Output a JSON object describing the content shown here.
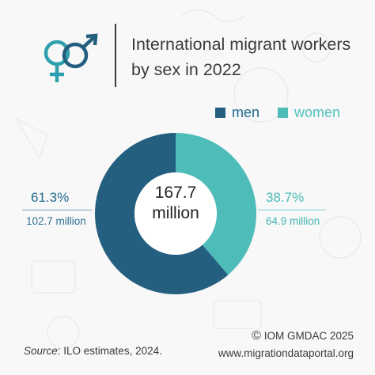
{
  "title": "International migrant workers by sex in 2022",
  "legend": {
    "men": "men",
    "women": "women"
  },
  "center": {
    "value": "167.7",
    "unit": "million"
  },
  "labels": {
    "men": {
      "percent": "61.3%",
      "value": "102.7 million"
    },
    "women": {
      "percent": "38.7%",
      "value": "64.9 million"
    }
  },
  "source": {
    "label": "Source",
    "text": ": ILO estimates, 2024."
  },
  "credit": {
    "copyright": "©",
    "org": "IOM GMDAC 2025",
    "url": "www.migrationdataportal.org"
  },
  "colors": {
    "men": "#245f80",
    "women": "#4ebcb9",
    "icon": "#2f9fae"
  },
  "icons": [
    "gender-symbols-icon",
    "copyright-icon"
  ],
  "chart_data": {
    "type": "pie",
    "style": "donut",
    "total": 167.7,
    "unit": "million",
    "categories": [
      "men",
      "women"
    ],
    "values": [
      102.7,
      64.9
    ],
    "percentages": [
      61.3,
      38.7
    ],
    "title": "International migrant workers by sex in 2022",
    "legend_position": "top-right"
  }
}
